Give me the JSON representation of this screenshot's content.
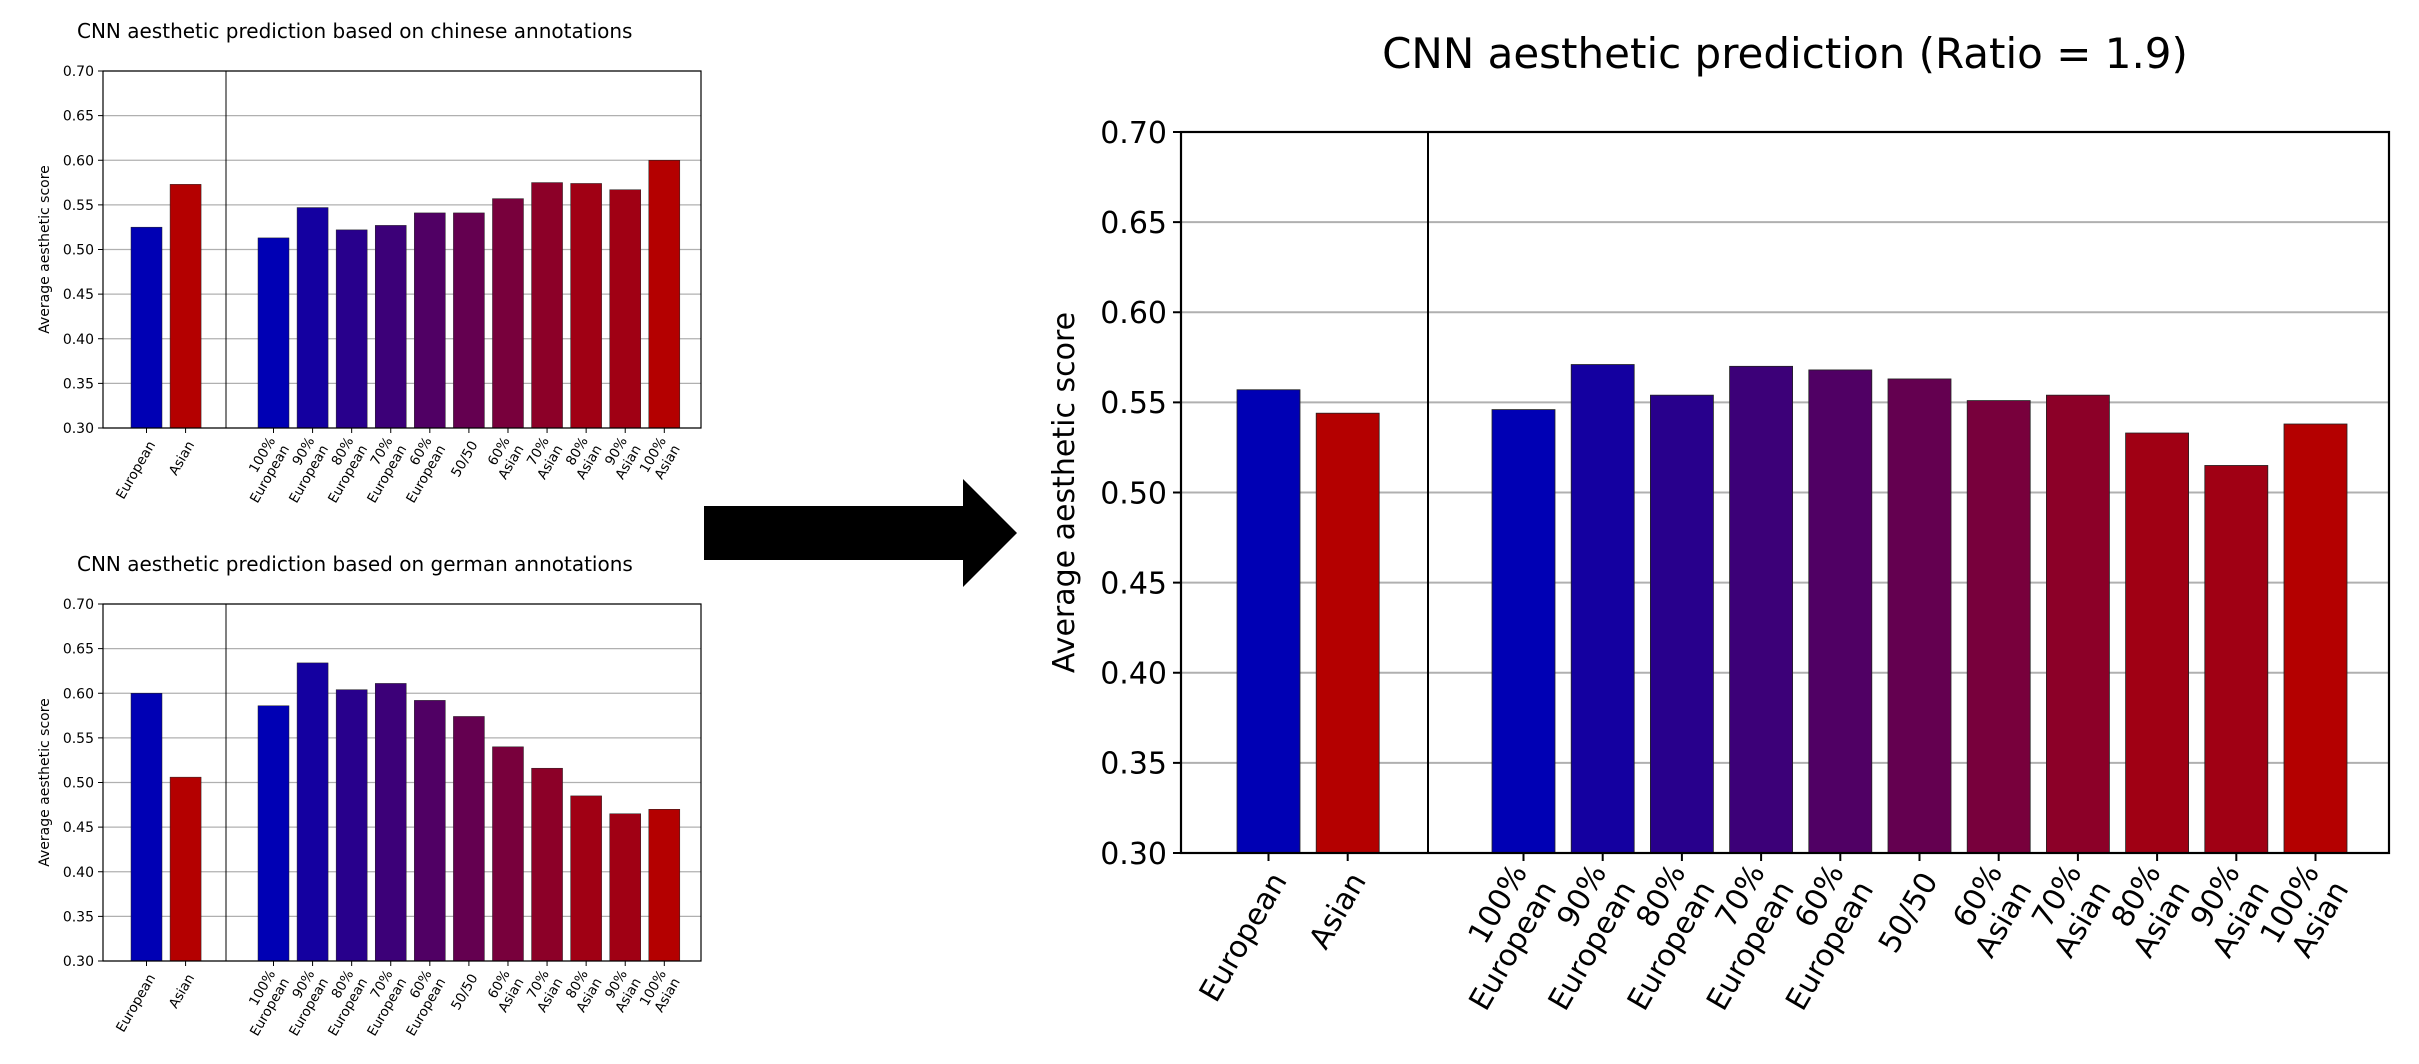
{
  "chart_data": [
    {
      "type": "bar",
      "title": "CNN aesthetic prediction based on chinese annotations",
      "ylabel": "Average aesthetic score",
      "ylim": [
        0.3,
        0.7
      ],
      "yticks": [
        "0.30",
        "0.35",
        "0.40",
        "0.45",
        "0.50",
        "0.55",
        "0.60",
        "0.65",
        "0.70"
      ],
      "grid": true,
      "categories": [
        "European",
        "Asian",
        "100%\nEuropean",
        "90%\nEuropean",
        "80%\nEuropean",
        "70%\nEuropean",
        "60%\nEuropean",
        "50/50",
        "60%\nAsian",
        "70%\nAsian",
        "80%\nAsian",
        "90%\nAsian",
        "100%\nAsian"
      ],
      "values": [
        0.525,
        0.573,
        0.513,
        0.547,
        0.522,
        0.527,
        0.541,
        0.541,
        0.557,
        0.575,
        0.574,
        0.567,
        0.6
      ],
      "colors": [
        "#0000b4",
        "#b40000",
        "#0000b4",
        "#1400a0",
        "#28008c",
        "#3c0078",
        "#500064",
        "#640050",
        "#78003c",
        "#8c0028",
        "#a00014",
        "#a00014",
        "#b40000"
      ]
    },
    {
      "type": "bar",
      "title": "CNN aesthetic prediction based on german annotations",
      "ylabel": "Average aesthetic score",
      "ylim": [
        0.3,
        0.7
      ],
      "yticks": [
        "0.30",
        "0.35",
        "0.40",
        "0.45",
        "0.50",
        "0.55",
        "0.60",
        "0.65",
        "0.70"
      ],
      "grid": true,
      "categories": [
        "European",
        "Asian",
        "100%\nEuropean",
        "90%\nEuropean",
        "80%\nEuropean",
        "70%\nEuropean",
        "60%\nEuropean",
        "50/50",
        "60%\nAsian",
        "70%\nAsian",
        "80%\nAsian",
        "90%\nAsian",
        "100%\nAsian"
      ],
      "values": [
        0.6,
        0.506,
        0.586,
        0.634,
        0.604,
        0.611,
        0.592,
        0.574,
        0.54,
        0.516,
        0.485,
        0.465,
        0.47
      ],
      "colors": [
        "#0000b4",
        "#b40000",
        "#0000b4",
        "#1400a0",
        "#28008c",
        "#3c0078",
        "#500064",
        "#640050",
        "#78003c",
        "#8c0028",
        "#a00014",
        "#a00014",
        "#b40000"
      ]
    },
    {
      "type": "bar",
      "title": "CNN aesthetic prediction (Ratio = 1.9)",
      "ylabel": "Average aesthetic score",
      "ylim": [
        0.3,
        0.7
      ],
      "yticks": [
        "0.30",
        "0.35",
        "0.40",
        "0.45",
        "0.50",
        "0.55",
        "0.60",
        "0.65",
        "0.70"
      ],
      "grid": true,
      "categories": [
        "European",
        "Asian",
        "100%\nEuropean",
        "90%\nEuropean",
        "80%\nEuropean",
        "70%\nEuropean",
        "60%\nEuropean",
        "50/50",
        "60%\nAsian",
        "70%\nAsian",
        "80%\nAsian",
        "90%\nAsian",
        "100%\nAsian"
      ],
      "values": [
        0.557,
        0.544,
        0.546,
        0.571,
        0.554,
        0.57,
        0.568,
        0.563,
        0.551,
        0.554,
        0.533,
        0.515,
        0.538
      ],
      "colors": [
        "#0000b4",
        "#b40000",
        "#0000b4",
        "#1400a0",
        "#28008c",
        "#3c0078",
        "#500064",
        "#640050",
        "#78003c",
        "#8c0028",
        "#a00014",
        "#a00014",
        "#b40000"
      ]
    }
  ],
  "arrow": {
    "color": "#000000"
  }
}
